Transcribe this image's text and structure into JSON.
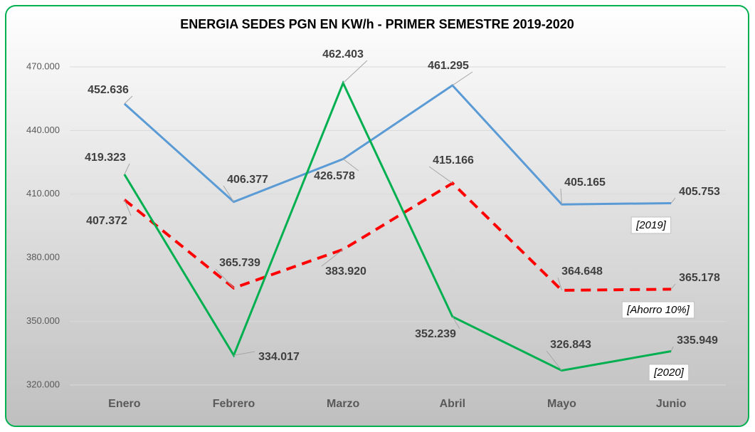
{
  "chart_data": {
    "type": "line",
    "title": "ENERGIA SEDES PGN EN KW/h - PRIMER SEMESTRE 2019-2020",
    "categories": [
      "Enero",
      "Febrero",
      "Marzo",
      "Abril",
      "Mayo",
      "Junio"
    ],
    "series": [
      {
        "name": "[2019]",
        "color": "#5b9bd5",
        "dashed": false,
        "values": [
          452636,
          406377,
          426578,
          461295,
          405165,
          405753
        ],
        "value_labels": [
          "452.636",
          "406.377",
          "426.578",
          "461.295",
          "405.165",
          "405.753"
        ]
      },
      {
        "name": "[Ahorro 10%]",
        "color": "#ff0000",
        "dashed": true,
        "values": [
          407372,
          365739,
          383920,
          415166,
          364648,
          365178
        ],
        "value_labels": [
          "407.372",
          "365.739",
          "383.920",
          "415.166",
          "364.648",
          "365.178"
        ]
      },
      {
        "name": "[2020]",
        "color": "#00b050",
        "dashed": false,
        "values": [
          419323,
          334017,
          462403,
          352239,
          326843,
          335949
        ],
        "value_labels": [
          "419.323",
          "334.017",
          "462.403",
          "352.239",
          "326.843",
          "335.949"
        ]
      }
    ],
    "ylim": [
      320000,
      470000
    ],
    "yticks": [
      {
        "value": 320000,
        "label": "320.000"
      },
      {
        "value": 350000,
        "label": "350.000"
      },
      {
        "value": 380000,
        "label": "380.000"
      },
      {
        "value": 410000,
        "label": "410.000"
      },
      {
        "value": 440000,
        "label": "440.000"
      },
      {
        "value": 470000,
        "label": "470.000"
      }
    ],
    "grid": true
  }
}
